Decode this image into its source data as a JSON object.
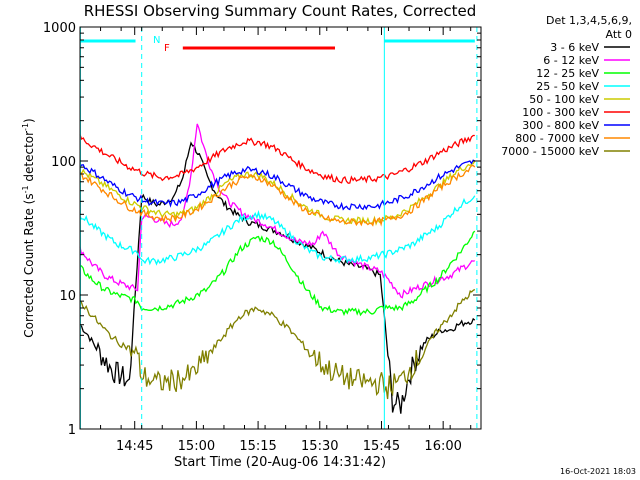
{
  "chart_data": {
    "type": "line",
    "title": "RHESSI Observing Summary Count Rates, Corrected",
    "xlabel": "Start Time (20-Aug-06 14:31:42)",
    "ylabel_main": "Corrected Count Rate (s",
    "ylabel_sup1": "-1",
    "ylabel_mid": " detector",
    "ylabel_sup2": "-1",
    "ylabel_end": ")",
    "yscale": "log",
    "ylim": [
      1,
      1000
    ],
    "xlim_minutes": [
      0,
      97.5
    ],
    "x_ticks": [
      {
        "label": "14:45",
        "minutes": 13.3
      },
      {
        "label": "15:00",
        "minutes": 28.3
      },
      {
        "label": "15:15",
        "minutes": 43.3
      },
      {
        "label": "15:30",
        "minutes": 58.3
      },
      {
        "label": "15:45",
        "minutes": 73.3
      },
      {
        "label": "16:00",
        "minutes": 88.3
      }
    ],
    "y_ticks": [
      {
        "label": "1",
        "value": 1
      },
      {
        "label": "10",
        "value": 10
      },
      {
        "label": "100",
        "value": 100
      },
      {
        "label": "1000",
        "value": 1000
      }
    ],
    "legend_header": [
      "Det 1,3,4,5,6,9,",
      "Att 0"
    ],
    "legend_position": "right",
    "series": [
      {
        "name": "3 - 6 keV",
        "color": "#000000",
        "x": [
          0,
          2,
          4,
          6,
          8,
          10,
          12,
          15,
          17,
          19,
          21,
          23,
          25,
          27,
          29,
          31,
          33,
          35,
          38,
          41,
          45,
          49,
          53,
          57,
          61,
          65,
          69,
          73,
          76,
          78,
          80,
          82,
          84,
          86,
          88,
          90,
          92,
          94,
          96
        ],
        "y": [
          6,
          5,
          4,
          3.3,
          2.7,
          2.5,
          2.2,
          55,
          50,
          47,
          50,
          55,
          75,
          140,
          110,
          75,
          58,
          48,
          40,
          35,
          32,
          29,
          25,
          22,
          19,
          17,
          16,
          14,
          1.6,
          1.5,
          2.5,
          3.5,
          4.5,
          5,
          5.5,
          5.5,
          6,
          6.3,
          6.5
        ]
      },
      {
        "name": "6 - 12 keV",
        "color": "#ff00ff",
        "x": [
          0,
          3,
          6,
          9,
          12,
          14,
          15,
          17,
          19,
          21,
          23,
          25,
          27,
          28.5,
          30,
          32,
          34,
          36,
          39,
          42,
          45,
          49,
          53,
          57,
          59,
          61,
          63,
          66,
          70,
          73,
          75,
          78,
          81,
          84,
          87,
          90,
          93,
          96
        ],
        "y": [
          22,
          17,
          14,
          12.5,
          11.5,
          11,
          38,
          38,
          36,
          34,
          34,
          38,
          80,
          195,
          130,
          85,
          62,
          50,
          42,
          37,
          34,
          29,
          25,
          24,
          30,
          24,
          20,
          18,
          16,
          15,
          13,
          10,
          11,
          12,
          13,
          14,
          16,
          18
        ]
      },
      {
        "name": "12 - 25 keV",
        "color": "#00ff00",
        "x": [
          0,
          3,
          6,
          9,
          12,
          14,
          15,
          19,
          23,
          27,
          31,
          35,
          39,
          43,
          47,
          51,
          55,
          59,
          63,
          67,
          71,
          73.3,
          74,
          78,
          81,
          84,
          87,
          90,
          93,
          96
        ],
        "y": [
          16,
          13,
          11,
          10,
          9.5,
          9,
          8,
          8,
          8.5,
          9.5,
          11,
          15,
          22,
          27,
          25,
          17,
          11,
          8,
          7.5,
          7.5,
          7.5,
          8,
          8,
          8,
          9,
          11,
          13,
          17,
          22,
          30
        ]
      },
      {
        "name": "25 - 50 keV",
        "color": "#00ffff",
        "x": [
          0,
          3,
          6,
          9,
          12,
          14,
          15,
          19,
          23,
          27,
          31,
          35,
          39,
          43,
          47,
          51,
          55,
          59,
          63,
          67,
          71,
          73.3,
          74,
          78,
          81,
          84,
          87,
          90,
          93,
          96
        ],
        "y": [
          40,
          33,
          28,
          24,
          22,
          21,
          18,
          18,
          19,
          21,
          24,
          30,
          37,
          40,
          36,
          28,
          22,
          19,
          18.5,
          18.5,
          19,
          20,
          20,
          22,
          24,
          28,
          32,
          40,
          48,
          55
        ]
      },
      {
        "name": "50 - 100 keV",
        "color": "#cccc00",
        "x": [
          0,
          4,
          8,
          12,
          16,
          20,
          24,
          28,
          32,
          36,
          40,
          44,
          48,
          52,
          56,
          60,
          64,
          68,
          72,
          76,
          80,
          84,
          88,
          92,
          96
        ],
        "y": [
          85,
          72,
          60,
          50,
          44,
          40,
          40,
          44,
          55,
          70,
          80,
          78,
          65,
          52,
          43,
          38,
          36,
          36,
          36,
          38,
          44,
          54,
          68,
          85,
          100
        ]
      },
      {
        "name": "100 - 300 keV",
        "color": "#ff0000",
        "x": [
          0,
          4,
          8,
          12,
          16,
          20,
          24,
          28,
          32,
          36,
          40,
          44,
          48,
          52,
          56,
          60,
          64,
          68,
          72,
          76,
          80,
          84,
          88,
          92,
          96
        ],
        "y": [
          150,
          125,
          105,
          90,
          80,
          75,
          78,
          88,
          105,
          125,
          140,
          138,
          122,
          100,
          85,
          76,
          72,
          72,
          74,
          78,
          88,
          100,
          118,
          135,
          155
        ]
      },
      {
        "name": "300 - 800 keV",
        "color": "#0000ff",
        "x": [
          0,
          4,
          8,
          12,
          16,
          20,
          24,
          28,
          32,
          36,
          40,
          44,
          48,
          52,
          56,
          60,
          64,
          68,
          72,
          76,
          80,
          84,
          88,
          92,
          96
        ],
        "y": [
          95,
          80,
          66,
          56,
          50,
          48,
          49,
          55,
          66,
          78,
          86,
          84,
          74,
          62,
          53,
          48,
          46,
          46,
          46,
          50,
          56,
          66,
          78,
          90,
          100
        ]
      },
      {
        "name": "800 - 7000 keV",
        "color": "#ff8800",
        "x": [
          0,
          4,
          8,
          12,
          16,
          20,
          24,
          28,
          32,
          36,
          40,
          44,
          48,
          52,
          56,
          60,
          64,
          68,
          72,
          76,
          80,
          84,
          88,
          92,
          96
        ],
        "y": [
          80,
          66,
          54,
          45,
          40,
          37,
          38,
          43,
          52,
          65,
          76,
          74,
          62,
          49,
          41,
          37,
          35,
          35,
          35,
          37,
          42,
          52,
          65,
          78,
          90
        ]
      },
      {
        "name": "7000 - 15000 keV",
        "color": "#808000",
        "x": [
          0,
          3,
          6,
          9,
          12,
          14,
          15,
          19,
          23,
          27,
          31,
          35,
          39,
          43,
          47,
          51,
          55,
          59,
          63,
          67,
          71,
          73.3,
          74,
          78,
          81,
          84,
          87,
          90,
          93,
          96
        ],
        "y": [
          9,
          7,
          5.5,
          4.5,
          4,
          3.5,
          2.5,
          2.2,
          2.3,
          2.5,
          3.5,
          5,
          7,
          8,
          7,
          5.5,
          4,
          3,
          2.5,
          2.3,
          2.2,
          2.2,
          2,
          2.3,
          3,
          4,
          5.5,
          7,
          9,
          11
        ]
      }
    ],
    "annotations": [
      {
        "label": "N",
        "color": "#00ffff"
      },
      {
        "label": "F",
        "color": "#ff0000"
      }
    ],
    "flag_spans": [
      {
        "name": "night",
        "color": "#00ffff",
        "x_minutes": [
          [
            0,
            13.5
          ],
          [
            74,
            96
          ]
        ]
      },
      {
        "name": "flare",
        "color": "#ff0000",
        "x_minutes": [
          [
            25,
            62
          ]
        ]
      }
    ],
    "boundary_lines_minutes": [
      0.1,
      15,
      74,
      96.5
    ],
    "footer_timestamp": "16-Oct-2021 18:03"
  }
}
